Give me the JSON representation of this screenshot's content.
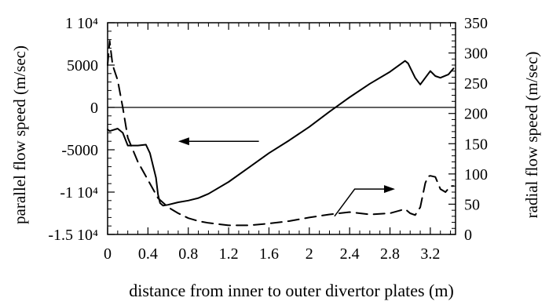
{
  "chart_data": {
    "type": "line",
    "xlabel": "distance from inner to outer divertor plates (m)",
    "ylabel_left": "parallel flow speed (m/sec)",
    "ylabel_right": "radial flow speed (m/sec)",
    "xlim": [
      0,
      3.45
    ],
    "ylim_left": [
      -15000,
      10000
    ],
    "ylim_right": [
      0,
      350
    ],
    "x_ticks": [
      {
        "value": 0,
        "label": "0"
      },
      {
        "value": 0.4,
        "label": "0.4"
      },
      {
        "value": 0.8,
        "label": "0.8"
      },
      {
        "value": 1.2,
        "label": "1.2"
      },
      {
        "value": 1.6,
        "label": "1.6"
      },
      {
        "value": 2.0,
        "label": "2"
      },
      {
        "value": 2.4,
        "label": "2.4"
      },
      {
        "value": 2.8,
        "label": "2.8"
      },
      {
        "value": 3.2,
        "label": "3.2"
      }
    ],
    "y_left_ticks": [
      {
        "value": 10000,
        "label": "1 10⁴"
      },
      {
        "value": 5000,
        "label": "5000"
      },
      {
        "value": 0,
        "label": "0"
      },
      {
        "value": -5000,
        "label": "-5000"
      },
      {
        "value": -10000,
        "label": "-1 10⁴"
      },
      {
        "value": -15000,
        "label": "-1.5 10⁴"
      }
    ],
    "y_right_ticks": [
      {
        "value": 350,
        "label": "350"
      },
      {
        "value": 300,
        "label": "300"
      },
      {
        "value": 250,
        "label": "250"
      },
      {
        "value": 200,
        "label": "200"
      },
      {
        "value": 150,
        "label": "150"
      },
      {
        "value": 100,
        "label": "100"
      },
      {
        "value": 50,
        "label": "50"
      },
      {
        "value": 0,
        "label": "0"
      }
    ],
    "reference_line_left_y": 0,
    "series": [
      {
        "style": "solid",
        "axis": "left",
        "x": [
          0.0,
          0.02,
          0.1,
          0.15,
          0.2,
          0.3,
          0.38,
          0.42,
          0.48,
          0.5,
          0.52,
          0.55,
          0.6,
          0.7,
          0.8,
          0.9,
          1.0,
          1.2,
          1.4,
          1.6,
          1.8,
          2.0,
          2.2,
          2.4,
          2.6,
          2.8,
          2.95,
          2.98,
          3.05,
          3.1,
          3.15,
          3.2,
          3.25,
          3.3,
          3.38,
          3.43
        ],
        "values": [
          -2600,
          -2800,
          -2500,
          -3000,
          -4500,
          -4500,
          -4400,
          -5400,
          -8300,
          -10300,
          -11300,
          -11600,
          -11500,
          -11200,
          -11000,
          -10700,
          -10200,
          -8800,
          -7100,
          -5400,
          -3900,
          -2300,
          -500,
          1200,
          2800,
          4200,
          5500,
          5200,
          3500,
          2700,
          3500,
          4300,
          3700,
          3500,
          3900,
          4600
        ]
      },
      {
        "style": "dashed",
        "axis": "right",
        "x": [
          0.0,
          0.02,
          0.05,
          0.1,
          0.15,
          0.2,
          0.3,
          0.4,
          0.5,
          0.6,
          0.7,
          0.8,
          0.9,
          1.0,
          1.2,
          1.4,
          1.6,
          1.8,
          2.0,
          2.2,
          2.4,
          2.6,
          2.8,
          2.95,
          3.0,
          3.05,
          3.1,
          3.15,
          3.18,
          3.2,
          3.25,
          3.3,
          3.35,
          3.4,
          3.43
        ],
        "values": [
          280,
          320,
          280,
          255,
          210,
          160,
          120,
          90,
          60,
          45,
          35,
          27,
          22,
          19,
          15,
          15,
          18,
          22,
          28,
          33,
          37,
          33,
          35,
          42,
          35,
          32,
          45,
          85,
          96,
          97,
          95,
          75,
          70,
          80,
          80
        ]
      }
    ],
    "annotations": [
      {
        "type": "arrow",
        "direction": "left",
        "points_to": "left axis",
        "from": [
          1.5,
          -4000
        ],
        "to": [
          0.7,
          -4000
        ]
      },
      {
        "type": "arrow",
        "direction": "right",
        "points_to": "right axis",
        "from": [
          2.25,
          30
        ],
        "to": [
          2.85,
          75
        ]
      }
    ]
  }
}
